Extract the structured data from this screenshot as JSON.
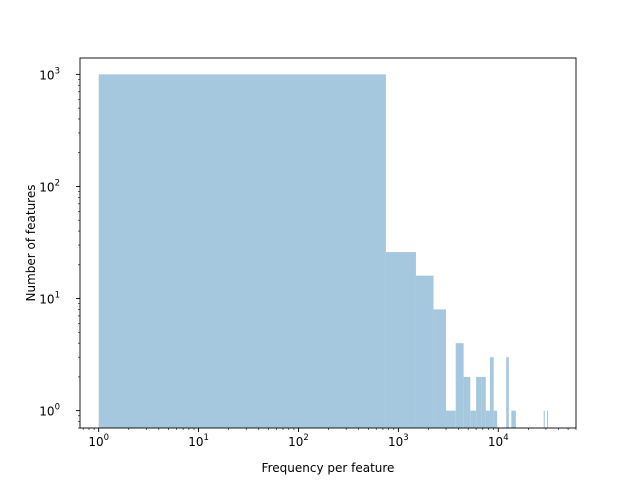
{
  "chart_data": {
    "type": "bar",
    "title": "",
    "xlabel": "Frequency per feature",
    "ylabel": "Number of features",
    "x_scale": "log",
    "y_scale": "log",
    "xlim": [
      0.65,
      60000
    ],
    "ylim": [
      0.7,
      1400
    ],
    "grid": false,
    "bar_color": "#a6c8df",
    "x_ticks": [
      {
        "value": 1,
        "base": "10",
        "exp": "0"
      },
      {
        "value": 10,
        "base": "10",
        "exp": "1"
      },
      {
        "value": 100,
        "base": "10",
        "exp": "2"
      },
      {
        "value": 1000,
        "base": "10",
        "exp": "3"
      },
      {
        "value": 10000,
        "base": "10",
        "exp": "4"
      }
    ],
    "y_ticks": [
      {
        "value": 1,
        "base": "10",
        "exp": "0"
      },
      {
        "value": 10,
        "base": "10",
        "exp": "1"
      },
      {
        "value": 100,
        "base": "10",
        "exp": "2"
      },
      {
        "value": 1000,
        "base": "10",
        "exp": "3"
      }
    ],
    "bins": [
      {
        "x0": 1,
        "x1": 750,
        "count": 1000
      },
      {
        "x0": 750,
        "x1": 1500,
        "count": 26
      },
      {
        "x0": 1500,
        "x1": 2250,
        "count": 16
      },
      {
        "x0": 2250,
        "x1": 3000,
        "count": 8
      },
      {
        "x0": 3000,
        "x1": 3750,
        "count": 1
      },
      {
        "x0": 3750,
        "x1": 4500,
        "count": 4
      },
      {
        "x0": 4500,
        "x1": 5250,
        "count": 2
      },
      {
        "x0": 5250,
        "x1": 6000,
        "count": 1
      },
      {
        "x0": 6000,
        "x1": 6750,
        "count": 2
      },
      {
        "x0": 6750,
        "x1": 7500,
        "count": 2
      },
      {
        "x0": 7500,
        "x1": 8250,
        "count": 1
      },
      {
        "x0": 8250,
        "x1": 9000,
        "count": 3
      },
      {
        "x0": 9000,
        "x1": 9750,
        "count": 1
      },
      {
        "x0": 12000,
        "x1": 12750,
        "count": 3
      },
      {
        "x0": 13500,
        "x1": 15000,
        "count": 1
      },
      {
        "x0": 28500,
        "x1": 29250,
        "count": 1
      },
      {
        "x0": 30750,
        "x1": 31500,
        "count": 1
      }
    ]
  }
}
